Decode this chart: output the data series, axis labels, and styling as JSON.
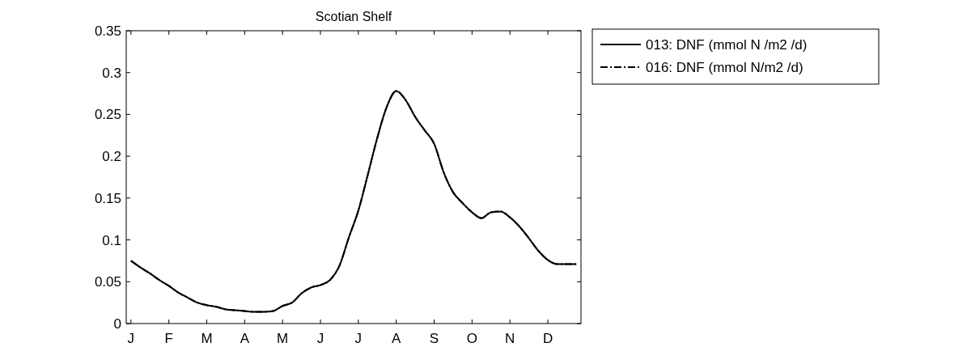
{
  "chart_data": {
    "type": "line",
    "title": "Scotian Shelf",
    "categories": [
      "J",
      null,
      null,
      null,
      "F",
      null,
      null,
      null,
      "M",
      null,
      null,
      null,
      "A",
      null,
      null,
      null,
      "M",
      null,
      null,
      null,
      "J",
      null,
      null,
      null,
      "J",
      null,
      null,
      null,
      "A",
      null,
      null,
      null,
      "S",
      null,
      null,
      null,
      "O",
      null,
      null,
      null,
      "N",
      null,
      null,
      null,
      "D",
      null,
      null,
      null
    ],
    "series": [
      {
        "name": "013: DNF (mmol N /m2 /d)",
        "color": "#000000",
        "line_style": "solid",
        "values": [
          0.075,
          0.067,
          0.06,
          0.052,
          0.045,
          0.037,
          0.031,
          0.025,
          0.022,
          0.02,
          0.017,
          0.016,
          0.015,
          0.014,
          0.014,
          0.015,
          0.021,
          0.025,
          0.036,
          0.043,
          0.046,
          0.052,
          0.069,
          0.103,
          0.135,
          0.178,
          0.222,
          0.259,
          0.278,
          0.267,
          0.247,
          0.231,
          0.215,
          0.181,
          0.157,
          0.144,
          0.133,
          0.126,
          0.133,
          0.134,
          0.127,
          0.116,
          0.102,
          0.087,
          0.076,
          0.071,
          0.071,
          0.071
        ]
      },
      {
        "name": "016: DNF (mmol N/m2 /d)",
        "color": "#000000",
        "line_style": "dashed",
        "values": [
          0.075,
          0.067,
          0.06,
          0.052,
          0.045,
          0.037,
          0.031,
          0.025,
          0.022,
          0.02,
          0.017,
          0.016,
          0.015,
          0.014,
          0.014,
          0.015,
          0.021,
          0.025,
          0.036,
          0.043,
          0.046,
          0.052,
          0.069,
          0.103,
          0.135,
          0.178,
          0.222,
          0.259,
          0.278,
          0.267,
          0.247,
          0.231,
          0.215,
          0.181,
          0.157,
          0.144,
          0.133,
          0.126,
          0.133,
          0.134,
          0.127,
          0.116,
          0.102,
          0.087,
          0.076,
          0.071,
          0.071,
          0.071
        ]
      }
    ],
    "ylim": [
      0,
      0.35
    ],
    "yticks": [
      0,
      0.05,
      0.1,
      0.15,
      0.2,
      0.25,
      0.3,
      0.35
    ],
    "legend": "top right",
    "marker": "none"
  }
}
